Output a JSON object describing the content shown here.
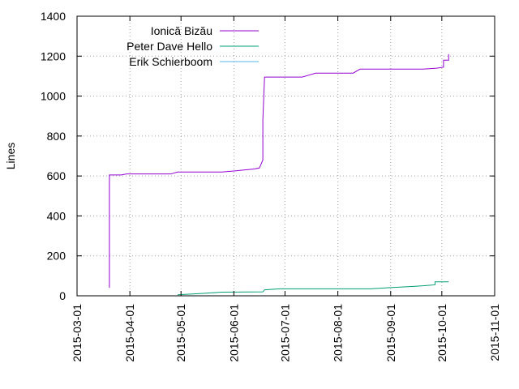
{
  "chart_data": {
    "type": "line",
    "title": "",
    "xlabel": "",
    "ylabel": "Lines",
    "xlim": [
      "2015-03-01",
      "2015-11-01"
    ],
    "ylim": [
      0,
      1400
    ],
    "x_ticks": [
      "2015-03-01",
      "2015-04-01",
      "2015-05-01",
      "2015-06-01",
      "2015-07-01",
      "2015-08-01",
      "2015-09-01",
      "2015-10-01",
      "2015-11-01"
    ],
    "y_ticks": [
      0,
      200,
      400,
      600,
      800,
      1000,
      1200,
      1400
    ],
    "grid": true,
    "legend_position": "top-left",
    "series": [
      {
        "name": "Ionică Bizău",
        "color": "#9400d3",
        "points": [
          [
            "2015-03-20",
            40
          ],
          [
            "2015-03-20",
            605
          ],
          [
            "2015-03-27",
            605
          ],
          [
            "2015-03-30",
            610
          ],
          [
            "2015-04-25",
            610
          ],
          [
            "2015-04-29",
            620
          ],
          [
            "2015-05-25",
            620
          ],
          [
            "2015-06-01",
            625
          ],
          [
            "2015-06-13",
            635
          ],
          [
            "2015-06-16",
            640
          ],
          [
            "2015-06-18",
            680
          ],
          [
            "2015-06-18",
            880
          ],
          [
            "2015-06-19",
            1095
          ],
          [
            "2015-07-11",
            1095
          ],
          [
            "2015-07-19",
            1115
          ],
          [
            "2015-08-10",
            1115
          ],
          [
            "2015-08-14",
            1135
          ],
          [
            "2015-09-20",
            1135
          ],
          [
            "2015-09-28",
            1140
          ],
          [
            "2015-10-02",
            1145
          ],
          [
            "2015-10-02",
            1180
          ],
          [
            "2015-10-05",
            1180
          ],
          [
            "2015-10-05",
            1210
          ]
        ]
      },
      {
        "name": "Peter Dave Hello",
        "color": "#009e73",
        "points": [
          [
            "2015-04-29",
            5
          ],
          [
            "2015-05-10",
            10
          ],
          [
            "2015-05-25",
            18
          ],
          [
            "2015-06-18",
            20
          ],
          [
            "2015-06-19",
            30
          ],
          [
            "2015-06-28",
            35
          ],
          [
            "2015-08-20",
            35
          ],
          [
            "2015-08-30",
            40
          ],
          [
            "2015-09-10",
            45
          ],
          [
            "2015-09-20",
            50
          ],
          [
            "2015-09-27",
            55
          ],
          [
            "2015-09-27",
            70
          ],
          [
            "2015-10-05",
            70
          ]
        ]
      },
      {
        "name": "Erik Schierboom",
        "color": "#56b4e9",
        "points": []
      }
    ]
  }
}
